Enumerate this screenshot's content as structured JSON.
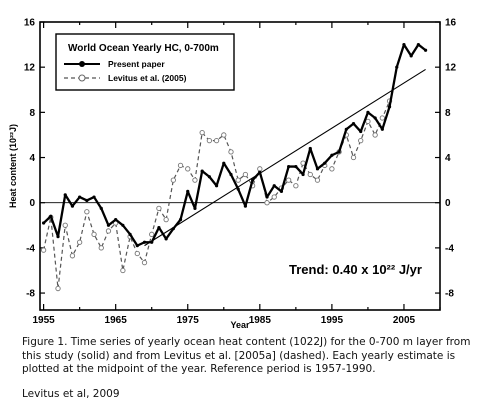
{
  "chart_data": {
    "type": "line",
    "title": "World Ocean Yearly HC, 0-700m",
    "xlabel": "Year",
    "ylabel": "Heat content (10²²J)",
    "xlim": [
      1954.5,
      2010
    ],
    "ylim": [
      -9.5,
      16
    ],
    "x_ticks": [
      1955,
      1965,
      1975,
      1985,
      1995,
      2005
    ],
    "y_ticks_left": [
      "-8",
      "-4",
      "0",
      "4",
      "8",
      "12",
      "16"
    ],
    "y_ticks_right": [
      "-8",
      "-4",
      "0",
      "4",
      "8",
      "12",
      "16"
    ],
    "y_tick_values": [
      -8,
      -4,
      0,
      4,
      8,
      12,
      16
    ],
    "zero_line": true,
    "legend_position": "top-left",
    "annotation": "Trend: 0.40 x 10²² J/yr",
    "series": [
      {
        "name": "Present paper",
        "style": "solid",
        "marker": "filled-circle",
        "color": "#000000",
        "x": [
          1955,
          1956,
          1957,
          1958,
          1959,
          1960,
          1961,
          1962,
          1963,
          1964,
          1965,
          1966,
          1967,
          1968,
          1969,
          1970,
          1971,
          1972,
          1973,
          1974,
          1975,
          1976,
          1977,
          1978,
          1979,
          1980,
          1981,
          1982,
          1983,
          1984,
          1985,
          1986,
          1987,
          1988,
          1989,
          1990,
          1991,
          1992,
          1993,
          1994,
          1995,
          1996,
          1997,
          1998,
          1999,
          2000,
          2001,
          2002,
          2003,
          2004,
          2005,
          2006,
          2007,
          2008
        ],
        "y": [
          -1.8,
          -1.2,
          -3.0,
          0.7,
          -0.3,
          0.5,
          0.2,
          0.5,
          -0.5,
          -2.0,
          -1.5,
          -2.0,
          -2.8,
          -3.8,
          -3.5,
          -3.5,
          -2.2,
          -3.2,
          -2.3,
          -1.5,
          1.0,
          -0.5,
          2.8,
          2.3,
          1.5,
          3.5,
          2.5,
          1.2,
          -0.3,
          2.0,
          2.7,
          0.5,
          1.5,
          1.0,
          3.2,
          3.2,
          2.5,
          4.8,
          3.0,
          3.5,
          4.2,
          4.5,
          6.5,
          7.0,
          6.3,
          8.0,
          7.5,
          6.5,
          8.5,
          12.0,
          14.0,
          13.0,
          14.0,
          13.5
        ]
      },
      {
        "name": "Levitus et al. (2005)",
        "style": "dashed",
        "marker": "open-circle",
        "color": "#555555",
        "x": [
          1955,
          1956,
          1957,
          1958,
          1959,
          1960,
          1961,
          1962,
          1963,
          1964,
          1965,
          1966,
          1967,
          1968,
          1969,
          1970,
          1971,
          1972,
          1973,
          1974,
          1975,
          1976,
          1977,
          1978,
          1979,
          1980,
          1981,
          1982,
          1983,
          1984,
          1985,
          1986,
          1987,
          1988,
          1989,
          1990,
          1991,
          1992,
          1993,
          1994,
          1995,
          1996,
          1997,
          1998,
          1999,
          2000,
          2001,
          2002,
          2003
        ],
        "y": [
          -4.2,
          -1.3,
          -7.6,
          -2.0,
          -4.7,
          -3.5,
          -0.8,
          -2.8,
          -4.0,
          -2.5,
          -1.8,
          -6.0,
          -3.0,
          -4.5,
          -5.3,
          -2.8,
          -0.5,
          -1.5,
          2.0,
          3.3,
          3.0,
          2.0,
          6.2,
          5.5,
          5.5,
          6.0,
          4.5,
          2.0,
          2.5,
          1.5,
          3.0,
          0.0,
          0.5,
          1.3,
          2.0,
          1.5,
          3.5,
          2.5,
          2.0,
          3.3,
          3.0,
          4.5,
          6.0,
          4.0,
          5.5,
          7.2,
          6.0,
          7.5,
          9.0
        ]
      },
      {
        "name": "Trend",
        "style": "solid-thin",
        "color": "#000000",
        "x": [
          1969,
          2008
        ],
        "y": [
          -3.8,
          11.8
        ]
      }
    ]
  },
  "caption": {
    "text": "Figure 1.  Time series of yearly ocean heat content (1022J) for the 0-700 m layer from this study (solid) and from Levitus et al. [2005a] (dashed).  Each yearly estimate is plotted at the midpoint of the year.  Reference period is 1957-1990.",
    "credit": "Levitus et al, 2009"
  }
}
